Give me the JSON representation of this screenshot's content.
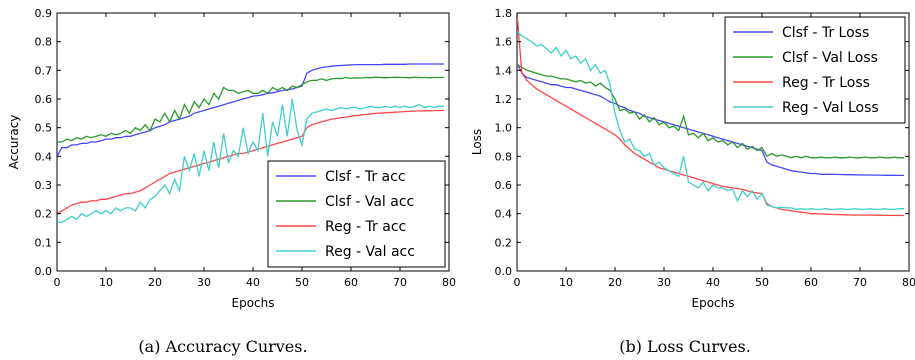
{
  "colors": {
    "clsf_tr": "#4747ff",
    "clsf_val": "#2a9a2a",
    "reg_tr": "#ff4747",
    "reg_val": "#3fd0cc"
  },
  "chart_data": [
    {
      "type": "line",
      "caption": "(a) Accuracy Curves.",
      "xlabel": "Epochs",
      "ylabel": "Accuracy",
      "xlim": [
        0,
        80
      ],
      "ylim": [
        0.0,
        0.9
      ],
      "xticks": [
        "0",
        "10",
        "20",
        "30",
        "40",
        "50",
        "60",
        "70",
        "80"
      ],
      "yticks": [
        "0.0",
        "0.1",
        "0.2",
        "0.3",
        "0.4",
        "0.5",
        "0.6",
        "0.7",
        "0.8",
        "0.9"
      ],
      "grid": false,
      "legend_position": "bottom-right",
      "x": [
        0,
        1,
        2,
        3,
        4,
        5,
        6,
        7,
        8,
        9,
        10,
        11,
        12,
        13,
        14,
        15,
        16,
        17,
        18,
        19,
        20,
        21,
        22,
        23,
        24,
        25,
        26,
        27,
        28,
        29,
        30,
        31,
        32,
        33,
        34,
        35,
        36,
        37,
        38,
        39,
        40,
        41,
        42,
        43,
        44,
        45,
        46,
        47,
        48,
        49,
        50,
        51,
        52,
        53,
        54,
        55,
        56,
        57,
        58,
        59,
        60,
        61,
        62,
        63,
        64,
        65,
        66,
        67,
        68,
        69,
        70,
        71,
        72,
        73,
        74,
        75,
        76,
        77,
        78,
        79
      ],
      "series": [
        {
          "name": "Clsf - Tr acc",
          "color_key": "clsf_tr",
          "values": [
            0.4,
            0.43,
            0.43,
            0.44,
            0.44,
            0.445,
            0.445,
            0.45,
            0.45,
            0.455,
            0.46,
            0.46,
            0.465,
            0.465,
            0.47,
            0.47,
            0.475,
            0.48,
            0.485,
            0.49,
            0.5,
            0.505,
            0.51,
            0.52,
            0.525,
            0.53,
            0.535,
            0.54,
            0.55,
            0.555,
            0.56,
            0.565,
            0.57,
            0.575,
            0.58,
            0.585,
            0.59,
            0.595,
            0.6,
            0.605,
            0.61,
            0.612,
            0.615,
            0.62,
            0.622,
            0.625,
            0.63,
            0.632,
            0.635,
            0.64,
            0.645,
            0.69,
            0.7,
            0.705,
            0.71,
            0.712,
            0.714,
            0.716,
            0.717,
            0.718,
            0.719,
            0.72,
            0.72,
            0.72,
            0.72,
            0.72,
            0.72,
            0.721,
            0.721,
            0.721,
            0.721,
            0.721,
            0.722,
            0.722,
            0.722,
            0.722,
            0.722,
            0.722,
            0.722,
            0.722
          ]
        },
        {
          "name": "Clsf - Val acc",
          "color_key": "clsf_val",
          "values": [
            0.45,
            0.45,
            0.46,
            0.455,
            0.465,
            0.46,
            0.47,
            0.465,
            0.47,
            0.475,
            0.47,
            0.48,
            0.475,
            0.48,
            0.49,
            0.48,
            0.5,
            0.49,
            0.51,
            0.49,
            0.53,
            0.52,
            0.55,
            0.52,
            0.56,
            0.53,
            0.58,
            0.55,
            0.59,
            0.57,
            0.6,
            0.58,
            0.62,
            0.6,
            0.64,
            0.63,
            0.63,
            0.62,
            0.625,
            0.63,
            0.62,
            0.62,
            0.63,
            0.62,
            0.64,
            0.63,
            0.64,
            0.63,
            0.645,
            0.64,
            0.65,
            0.66,
            0.665,
            0.665,
            0.67,
            0.665,
            0.67,
            0.672,
            0.671,
            0.675,
            0.672,
            0.674,
            0.673,
            0.675,
            0.674,
            0.676,
            0.675,
            0.674,
            0.675,
            0.676,
            0.675,
            0.675,
            0.674,
            0.676,
            0.675,
            0.675,
            0.674,
            0.675,
            0.675,
            0.675
          ]
        },
        {
          "name": "Reg - Tr acc",
          "color_key": "reg_tr",
          "values": [
            0.2,
            0.21,
            0.22,
            0.23,
            0.235,
            0.24,
            0.24,
            0.245,
            0.245,
            0.25,
            0.25,
            0.255,
            0.26,
            0.265,
            0.27,
            0.27,
            0.275,
            0.28,
            0.29,
            0.3,
            0.31,
            0.32,
            0.33,
            0.34,
            0.345,
            0.35,
            0.355,
            0.36,
            0.365,
            0.37,
            0.375,
            0.38,
            0.385,
            0.39,
            0.395,
            0.4,
            0.405,
            0.41,
            0.41,
            0.415,
            0.42,
            0.425,
            0.43,
            0.435,
            0.44,
            0.445,
            0.45,
            0.455,
            0.46,
            0.465,
            0.47,
            0.5,
            0.51,
            0.515,
            0.52,
            0.525,
            0.53,
            0.532,
            0.535,
            0.537,
            0.54,
            0.542,
            0.544,
            0.546,
            0.548,
            0.55,
            0.551,
            0.552,
            0.553,
            0.554,
            0.555,
            0.556,
            0.557,
            0.558,
            0.558,
            0.559,
            0.559,
            0.56,
            0.56,
            0.56
          ]
        },
        {
          "name": "Reg - Val acc",
          "color_key": "reg_val",
          "values": [
            0.17,
            0.17,
            0.18,
            0.19,
            0.18,
            0.2,
            0.19,
            0.2,
            0.21,
            0.2,
            0.21,
            0.2,
            0.22,
            0.21,
            0.22,
            0.22,
            0.21,
            0.24,
            0.22,
            0.25,
            0.26,
            0.28,
            0.3,
            0.27,
            0.32,
            0.28,
            0.4,
            0.35,
            0.41,
            0.33,
            0.42,
            0.35,
            0.45,
            0.36,
            0.48,
            0.38,
            0.42,
            0.4,
            0.5,
            0.41,
            0.45,
            0.42,
            0.55,
            0.4,
            0.52,
            0.47,
            0.58,
            0.47,
            0.6,
            0.49,
            0.44,
            0.53,
            0.55,
            0.555,
            0.56,
            0.565,
            0.56,
            0.565,
            0.57,
            0.565,
            0.57,
            0.57,
            0.565,
            0.57,
            0.575,
            0.57,
            0.57,
            0.575,
            0.57,
            0.575,
            0.57,
            0.575,
            0.57,
            0.575,
            0.58,
            0.57,
            0.575,
            0.57,
            0.575,
            0.575
          ]
        }
      ]
    },
    {
      "type": "line",
      "caption": "(b) Loss Curves.",
      "xlabel": "Epochs",
      "ylabel": "Loss",
      "xlim": [
        0,
        80
      ],
      "ylim": [
        0.0,
        1.8
      ],
      "xticks": [
        "0",
        "10",
        "20",
        "30",
        "40",
        "50",
        "60",
        "70",
        "80"
      ],
      "yticks": [
        "0.0",
        "0.2",
        "0.4",
        "0.6",
        "0.8",
        "1.0",
        "1.2",
        "1.4",
        "1.6",
        "1.8"
      ],
      "grid": false,
      "legend_position": "top-right",
      "x": [
        0,
        1,
        2,
        3,
        4,
        5,
        6,
        7,
        8,
        9,
        10,
        11,
        12,
        13,
        14,
        15,
        16,
        17,
        18,
        19,
        20,
        21,
        22,
        23,
        24,
        25,
        26,
        27,
        28,
        29,
        30,
        31,
        32,
        33,
        34,
        35,
        36,
        37,
        38,
        39,
        40,
        41,
        42,
        43,
        44,
        45,
        46,
        47,
        48,
        49,
        50,
        51,
        52,
        53,
        54,
        55,
        56,
        57,
        58,
        59,
        60,
        61,
        62,
        63,
        64,
        65,
        66,
        67,
        68,
        69,
        70,
        71,
        72,
        73,
        74,
        75,
        76,
        77,
        78,
        79
      ],
      "series": [
        {
          "name": "Clsf - Tr Loss",
          "color_key": "clsf_tr",
          "values": [
            1.45,
            1.38,
            1.35,
            1.34,
            1.33,
            1.32,
            1.31,
            1.3,
            1.3,
            1.29,
            1.28,
            1.28,
            1.27,
            1.26,
            1.25,
            1.24,
            1.23,
            1.22,
            1.2,
            1.18,
            1.17,
            1.15,
            1.14,
            1.12,
            1.11,
            1.1,
            1.08,
            1.07,
            1.06,
            1.05,
            1.04,
            1.03,
            1.02,
            1.01,
            1.0,
            0.99,
            0.98,
            0.97,
            0.96,
            0.95,
            0.94,
            0.93,
            0.92,
            0.91,
            0.9,
            0.89,
            0.88,
            0.87,
            0.86,
            0.85,
            0.84,
            0.76,
            0.74,
            0.73,
            0.72,
            0.71,
            0.7,
            0.695,
            0.69,
            0.685,
            0.68,
            0.68,
            0.675,
            0.675,
            0.675,
            0.674,
            0.673,
            0.672,
            0.672,
            0.671,
            0.67,
            0.67,
            0.67,
            0.669,
            0.669,
            0.668,
            0.668,
            0.668,
            0.667,
            0.667
          ]
        },
        {
          "name": "Clsf - Val Loss",
          "color_key": "clsf_val",
          "values": [
            1.44,
            1.42,
            1.4,
            1.39,
            1.38,
            1.37,
            1.36,
            1.36,
            1.35,
            1.34,
            1.34,
            1.33,
            1.32,
            1.33,
            1.31,
            1.32,
            1.29,
            1.31,
            1.28,
            1.26,
            1.2,
            1.12,
            1.13,
            1.1,
            1.11,
            1.06,
            1.09,
            1.04,
            1.07,
            1.02,
            1.04,
            1.0,
            1.01,
            0.98,
            1.08,
            0.95,
            0.96,
            0.93,
            0.96,
            0.91,
            0.93,
            0.9,
            0.91,
            0.88,
            0.9,
            0.86,
            0.89,
            0.85,
            0.87,
            0.84,
            0.86,
            0.8,
            0.82,
            0.8,
            0.81,
            0.8,
            0.79,
            0.8,
            0.79,
            0.8,
            0.79,
            0.79,
            0.795,
            0.79,
            0.79,
            0.795,
            0.79,
            0.79,
            0.795,
            0.79,
            0.79,
            0.795,
            0.79,
            0.79,
            0.795,
            0.79,
            0.79,
            0.795,
            0.79,
            0.79
          ]
        },
        {
          "name": "Reg - Tr Loss",
          "color_key": "reg_tr",
          "values": [
            1.8,
            1.38,
            1.33,
            1.3,
            1.27,
            1.25,
            1.23,
            1.21,
            1.19,
            1.17,
            1.15,
            1.13,
            1.11,
            1.09,
            1.07,
            1.05,
            1.03,
            1.01,
            0.99,
            0.97,
            0.95,
            0.92,
            0.88,
            0.85,
            0.82,
            0.8,
            0.78,
            0.76,
            0.74,
            0.72,
            0.71,
            0.7,
            0.69,
            0.68,
            0.67,
            0.66,
            0.65,
            0.64,
            0.63,
            0.62,
            0.61,
            0.6,
            0.59,
            0.585,
            0.58,
            0.575,
            0.57,
            0.56,
            0.55,
            0.545,
            0.54,
            0.47,
            0.45,
            0.44,
            0.43,
            0.425,
            0.42,
            0.415,
            0.41,
            0.405,
            0.4,
            0.4,
            0.398,
            0.396,
            0.395,
            0.394,
            0.393,
            0.392,
            0.391,
            0.39,
            0.39,
            0.39,
            0.39,
            0.389,
            0.389,
            0.388,
            0.388,
            0.388,
            0.387,
            0.387
          ]
        },
        {
          "name": "Reg - Val Loss",
          "color_key": "reg_val",
          "values": [
            1.67,
            1.64,
            1.62,
            1.6,
            1.57,
            1.58,
            1.55,
            1.52,
            1.56,
            1.5,
            1.54,
            1.48,
            1.5,
            1.45,
            1.48,
            1.4,
            1.44,
            1.38,
            1.4,
            1.3,
            1.1,
            0.98,
            0.9,
            0.92,
            0.85,
            0.84,
            0.8,
            0.82,
            0.74,
            0.76,
            0.72,
            0.7,
            0.68,
            0.66,
            0.8,
            0.62,
            0.6,
            0.58,
            0.62,
            0.56,
            0.6,
            0.58,
            0.58,
            0.56,
            0.57,
            0.49,
            0.56,
            0.52,
            0.56,
            0.5,
            0.54,
            0.46,
            0.45,
            0.44,
            0.445,
            0.44,
            0.44,
            0.43,
            0.435,
            0.43,
            0.435,
            0.43,
            0.43,
            0.435,
            0.43,
            0.43,
            0.435,
            0.43,
            0.43,
            0.435,
            0.43,
            0.43,
            0.435,
            0.43,
            0.43,
            0.435,
            0.43,
            0.43,
            0.435,
            0.435
          ]
        }
      ]
    }
  ]
}
